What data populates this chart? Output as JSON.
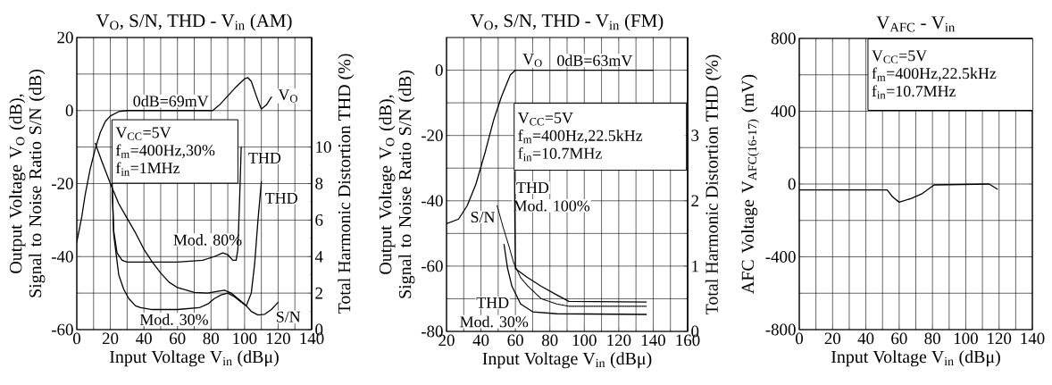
{
  "chart_data": [
    {
      "type": "line",
      "title": "V$_{O}$, S/N, THD - V$_{in}$ (AM)",
      "xlabel": "Input Voltage V$_{in}$ (dBμ)",
      "ylabel": "Output Voltage V$_{O}$ (dB), Signal to Noise Ratio S/N (dB)",
      "y2label": "Total Harmonic Distortion THD (%)",
      "xlim": [
        0,
        140
      ],
      "xticks": [
        0,
        20,
        40,
        60,
        80,
        100,
        120,
        140
      ],
      "ylim": [
        -60,
        20
      ],
      "yticks": [
        -60,
        -40,
        -20,
        0,
        20
      ],
      "y2lim": [
        0,
        16
      ],
      "y2ticks": [
        0,
        2,
        4,
        6,
        8,
        10
      ],
      "grid": true,
      "series": [
        {
          "name": "V$_{O}$",
          "color": "#000000",
          "x": [
            0,
            3,
            5,
            8,
            11,
            14,
            17,
            20,
            25,
            30,
            40,
            60,
            81,
            85,
            90,
            95,
            100,
            102,
            104,
            107,
            110,
            113,
            116
          ],
          "values": [
            -36,
            -29,
            -23,
            -16,
            -10.5,
            -6,
            -3,
            -1.5,
            -0.3,
            0,
            0,
            0,
            0,
            1.5,
            4,
            6.5,
            8.7,
            9,
            8,
            4,
            0.4,
            1.5,
            3.7
          ]
        },
        {
          "name": "S/N",
          "color": "#000000",
          "x": [
            11,
            15,
            20,
            25,
            30,
            35,
            40,
            45,
            50,
            55,
            60,
            70,
            78,
            84,
            88,
            92,
            96,
            100,
            104,
            108,
            112,
            116,
            120
          ],
          "values": [
            -9,
            -14,
            -20,
            -25.5,
            -29.5,
            -33.5,
            -38,
            -41.5,
            -44.5,
            -47,
            -48.5,
            -49.8,
            -50,
            -49.5,
            -49.2,
            -50,
            -51.5,
            -53,
            -55,
            -56,
            -55.8,
            -54.5,
            -52.5
          ]
        },
        {
          "name": "THD",
          "color": "#000000",
          "axis": "y2",
          "x": [
            21,
            22,
            24,
            27,
            30,
            40,
            60,
            75,
            82,
            87,
            90,
            93,
            95,
            96,
            97,
            98
          ],
          "values": [
            8,
            5.4,
            4.2,
            3.8,
            3.7,
            3.7,
            3.7,
            3.8,
            4,
            4.2,
            4.1,
            3.8,
            3.8,
            4.4,
            7,
            10
          ]
        },
        {
          "name": "THD",
          "color": "#000000",
          "axis": "y2",
          "x": [
            21,
            22,
            25,
            28,
            31,
            35,
            38,
            45,
            60,
            73,
            78,
            82,
            86,
            90,
            94,
            98,
            101,
            104,
            106,
            108,
            110
          ],
          "values": [
            8,
            5.2,
            3,
            2.2,
            1.7,
            1.3,
            1.2,
            1.1,
            1.1,
            1.2,
            1.4,
            1.7,
            1.9,
            2,
            1.8,
            1.5,
            1.3,
            2,
            3.6,
            6,
            8.1
          ]
        }
      ],
      "annotations": [
        "V$_{CC}$=5V",
        "f$_{m}$=400Hz,30%",
        "f$_{in}$=1MHz",
        "0dB=69mV",
        "Mod. 80%",
        "Mod. 30%"
      ]
    },
    {
      "type": "line",
      "title": "V$_{O}$, S/N, THD - V$_{in}$ (FM)",
      "xlabel": "Input Voltage V$_{in}$ (dBμ)",
      "ylabel": "Output Voltage V$_{O}$ (dB), Signal to Noise Ratio S/N (dB)",
      "y2label": "Total Harmonic Distortion THD (%)",
      "xlim": [
        20,
        160
      ],
      "xticks": [
        20,
        40,
        60,
        80,
        100,
        120,
        140,
        160
      ],
      "ylim": [
        -80,
        10
      ],
      "yticks": [
        -80,
        -60,
        -40,
        -20,
        0
      ],
      "y2lim": [
        0,
        4.5
      ],
      "y2ticks": [
        0,
        1,
        2,
        3
      ],
      "grid": true,
      "series": [
        {
          "name": "V$_{O}$",
          "color": "#000000",
          "x": [
            20,
            27,
            32,
            37,
            42.5,
            47.5,
            52,
            57,
            60,
            140
          ],
          "values": [
            -47,
            -45.6,
            -41.5,
            -35,
            -25,
            -15,
            -8,
            -1.5,
            0,
            0
          ]
        },
        {
          "name": "S/N",
          "color": "#000000",
          "line_style": "dotted",
          "x": [
            49.4,
            52.8,
            56.3,
            59,
            63,
            67,
            75,
            84,
            91,
            136
          ],
          "values": [
            -41.5,
            -48,
            -54,
            -59,
            -63.5,
            -66,
            -70,
            -71.6,
            -72.3,
            -72.3
          ]
        },
        {
          "name": "THD",
          "color": "#000000",
          "axis": "y2",
          "x": [
            59.5,
            59.7,
            60,
            66.7,
            75,
            84,
            91,
            136
          ],
          "values": [
            2.45,
            1.6,
            0.96,
            0.83,
            0.69,
            0.56,
            0.46,
            0.45
          ]
        },
        {
          "name": "THD",
          "color": "#000000",
          "axis": "y2",
          "x": [
            53.4,
            55.4,
            58,
            63,
            70,
            84,
            136
          ],
          "values": [
            1.33,
            0.97,
            0.69,
            0.42,
            0.3,
            0.27,
            0.26
          ]
        }
      ],
      "annotations": [
        "V$_{CC}$=5V",
        "f$_{m}$=400Hz,22.5kHz",
        "f$_{in}$=10.7MHz",
        "0dB=63mV",
        "Mod. 100%",
        "Mod. 30%"
      ]
    },
    {
      "type": "line",
      "title": "V$_{AFC}$ - V$_{in}$",
      "xlabel": "Input Voltage V$_{in}$ (dBμ)",
      "ylabel": "AFC Voltage V$_{AFC(16-17)}$ (mV)",
      "xlim": [
        0,
        140
      ],
      "xticks": [
        0,
        20,
        40,
        60,
        80,
        100,
        120,
        140
      ],
      "ylim": [
        -800,
        800
      ],
      "yticks": [
        -800,
        -400,
        0,
        400,
        800
      ],
      "grid": true,
      "series": [
        {
          "color": "#000000",
          "x": [
            0,
            52.8,
            56,
            60,
            67,
            74,
            81,
            114,
            119
          ],
          "values": [
            -33,
            -33,
            -70,
            -100,
            -80,
            -52,
            -5,
            0,
            -28
          ]
        }
      ],
      "annotations": [
        "V$_{CC}$=5V",
        "f$_{m}$=400Hz,22.5kHz",
        "f$_{in}$=10.7MHz"
      ]
    }
  ]
}
